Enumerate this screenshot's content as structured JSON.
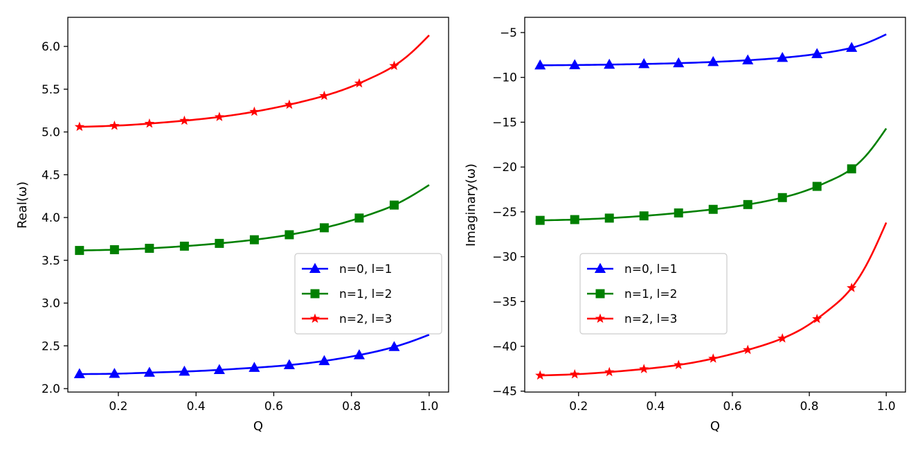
{
  "chart_data": [
    {
      "type": "line",
      "title": "",
      "xlabel": "Q",
      "ylabel": "Real(ω)",
      "xlim": [
        0.07,
        1.05
      ],
      "ylim": [
        1.96,
        6.34
      ],
      "xticks": [
        "0.2",
        "0.4",
        "0.6",
        "0.8",
        "1.0"
      ],
      "yticks": [
        "2.0",
        "2.5",
        "3.0",
        "3.5",
        "4.0",
        "4.5",
        "5.0",
        "5.5",
        "6.0"
      ],
      "legend_position": "center-right",
      "marker_x": [
        0.1,
        0.19,
        0.28,
        0.37,
        0.46,
        0.55,
        0.64,
        0.73,
        0.82,
        0.91
      ],
      "series": [
        {
          "name": "n=0, l=1",
          "color": "#0000ff",
          "marker": "triangle",
          "x": [
            0.1,
            0.2,
            0.3,
            0.4,
            0.5,
            0.6,
            0.7,
            0.8,
            0.85,
            0.9,
            0.95,
            1.0
          ],
          "values": [
            2.17,
            2.175,
            2.19,
            2.205,
            2.23,
            2.26,
            2.305,
            2.375,
            2.42,
            2.475,
            2.545,
            2.63
          ]
        },
        {
          "name": "n=1, l=2",
          "color": "#008000",
          "marker": "square",
          "x": [
            0.1,
            0.2,
            0.3,
            0.4,
            0.5,
            0.6,
            0.7,
            0.8,
            0.85,
            0.9,
            0.95,
            1.0
          ],
          "values": [
            3.615,
            3.625,
            3.645,
            3.675,
            3.715,
            3.77,
            3.85,
            3.965,
            4.04,
            4.125,
            4.24,
            4.38
          ]
        },
        {
          "name": "n=2, l=3",
          "color": "#ff0000",
          "marker": "star",
          "x": [
            0.1,
            0.2,
            0.3,
            0.4,
            0.5,
            0.6,
            0.7,
            0.8,
            0.85,
            0.9,
            0.95,
            1.0
          ],
          "values": [
            5.06,
            5.075,
            5.105,
            5.145,
            5.2,
            5.28,
            5.385,
            5.53,
            5.63,
            5.745,
            5.91,
            6.13
          ]
        }
      ]
    },
    {
      "type": "line",
      "title": "",
      "xlabel": "Q",
      "ylabel": "Imaginary(ω)",
      "xlim": [
        0.06,
        1.05
      ],
      "ylim": [
        -45.1,
        -3.3
      ],
      "xticks": [
        "0.2",
        "0.4",
        "0.6",
        "0.8",
        "1.0"
      ],
      "yticks": [
        "−45",
        "−40",
        "−35",
        "−30",
        "−25",
        "−20",
        "−15",
        "−10",
        "−5"
      ],
      "legend_position": "center-left",
      "marker_x": [
        0.1,
        0.19,
        0.28,
        0.37,
        0.46,
        0.55,
        0.64,
        0.73,
        0.82,
        0.91
      ],
      "series": [
        {
          "name": "n=0, l=1",
          "color": "#0000ff",
          "marker": "triangle",
          "x": [
            0.1,
            0.2,
            0.3,
            0.4,
            0.5,
            0.6,
            0.7,
            0.8,
            0.85,
            0.9,
            0.95,
            1.0
          ],
          "values": [
            -8.65,
            -8.62,
            -8.56,
            -8.48,
            -8.36,
            -8.18,
            -7.92,
            -7.5,
            -7.2,
            -6.8,
            -6.15,
            -5.2
          ]
        },
        {
          "name": "n=1, l=2",
          "color": "#008000",
          "marker": "square",
          "x": [
            0.1,
            0.2,
            0.3,
            0.4,
            0.5,
            0.6,
            0.7,
            0.8,
            0.85,
            0.9,
            0.95,
            1.0
          ],
          "values": [
            -25.95,
            -25.85,
            -25.65,
            -25.35,
            -24.95,
            -24.45,
            -23.7,
            -22.5,
            -21.6,
            -20.5,
            -18.6,
            -15.7
          ]
        },
        {
          "name": "n=2, l=3",
          "color": "#ff0000",
          "marker": "star",
          "x": [
            0.1,
            0.2,
            0.3,
            0.4,
            0.5,
            0.6,
            0.7,
            0.8,
            0.85,
            0.9,
            0.95,
            1.0
          ],
          "values": [
            -43.25,
            -43.1,
            -42.8,
            -42.4,
            -41.8,
            -40.85,
            -39.6,
            -37.55,
            -35.95,
            -34.0,
            -30.8,
            -26.2
          ]
        }
      ]
    }
  ]
}
